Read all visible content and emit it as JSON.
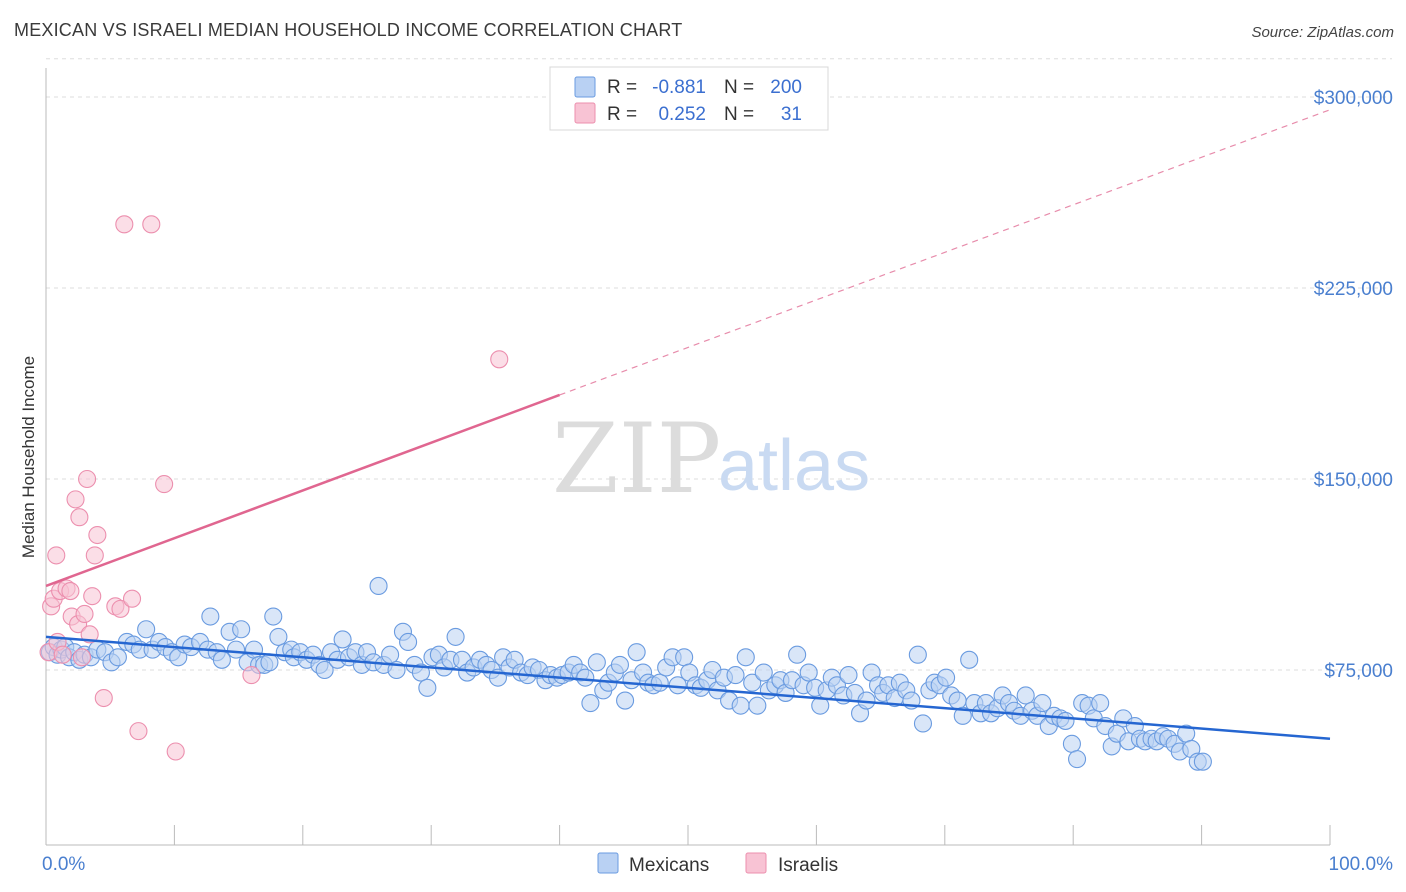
{
  "header": {
    "title": "MEXICAN VS ISRAELI MEDIAN HOUSEHOLD INCOME CORRELATION CHART",
    "source": "Source: ZipAtlas.com"
  },
  "colors": {
    "mexicans_fill": "#b9d1f3",
    "mexicans_stroke": "#6a9be0",
    "mexicans_line": "#2566d1",
    "israelis_fill": "#f8c3d4",
    "israelis_stroke": "#ec8fae",
    "israelis_line": "#e06690",
    "axis_text": "#4a7fcf",
    "grid": "#dddddd"
  },
  "watermark": {
    "part1": "ZIP",
    "part2": "atlas"
  },
  "legend": {
    "rows": [
      {
        "r_label": "R =",
        "r_value": "-0.881",
        "n_label": "N =",
        "n_value": "200"
      },
      {
        "r_label": "R =",
        "r_value": "0.252",
        "n_label": "N =",
        "n_value": "31"
      }
    ]
  },
  "chart_data": {
    "type": "scatter",
    "title": "MEXICAN VS ISRAELI MEDIAN HOUSEHOLD INCOME CORRELATION CHART",
    "xlabel": "",
    "ylabel": "Median Household Income",
    "xlim": [
      0,
      100
    ],
    "ylim": [
      0,
      315000
    ],
    "x_tick_labels": [
      "0.0%",
      "100.0%"
    ],
    "y_ticks": [
      75000,
      150000,
      225000,
      300000
    ],
    "y_tick_labels": [
      "$75,000",
      "$150,000",
      "$225,000",
      "$300,000"
    ],
    "grid": true,
    "legend_position": "top-center",
    "series": [
      {
        "name": "Mexicans",
        "r": -0.881,
        "n": 200,
        "trend": {
          "x": [
            0,
            100
          ],
          "y": [
            88000,
            48000
          ],
          "style": "solid"
        },
        "points": [
          [
            0.3,
            82000
          ],
          [
            0.6,
            84000
          ],
          [
            0.9,
            81000
          ],
          [
            1.2,
            83000
          ],
          [
            1.5,
            84000
          ],
          [
            1.8,
            80000
          ],
          [
            2.2,
            82000
          ],
          [
            2.6,
            79000
          ],
          [
            3.0,
            81000
          ],
          [
            3.5,
            80000
          ],
          [
            4.0,
            83000
          ],
          [
            4.6,
            82000
          ],
          [
            5.1,
            78000
          ],
          [
            5.6,
            80000
          ],
          [
            6.3,
            86000
          ],
          [
            6.8,
            85000
          ],
          [
            7.3,
            83000
          ],
          [
            7.8,
            91000
          ],
          [
            8.3,
            83000
          ],
          [
            8.8,
            86000
          ],
          [
            9.3,
            84000
          ],
          [
            9.8,
            82000
          ],
          [
            10.3,
            80000
          ],
          [
            10.8,
            85000
          ],
          [
            11.3,
            84000
          ],
          [
            12.0,
            86000
          ],
          [
            12.6,
            83000
          ],
          [
            12.8,
            96000
          ],
          [
            13.3,
            82000
          ],
          [
            13.7,
            79000
          ],
          [
            14.3,
            90000
          ],
          [
            14.8,
            83000
          ],
          [
            15.2,
            91000
          ],
          [
            15.7,
            78000
          ],
          [
            16.2,
            83000
          ],
          [
            16.6,
            77000
          ],
          [
            17.0,
            77000
          ],
          [
            17.4,
            78000
          ],
          [
            17.7,
            96000
          ],
          [
            18.1,
            88000
          ],
          [
            18.6,
            82000
          ],
          [
            19.1,
            83000
          ],
          [
            19.3,
            80000
          ],
          [
            19.8,
            82000
          ],
          [
            20.3,
            79000
          ],
          [
            20.8,
            81000
          ],
          [
            21.3,
            77000
          ],
          [
            21.7,
            75000
          ],
          [
            22.2,
            82000
          ],
          [
            22.7,
            79000
          ],
          [
            23.1,
            87000
          ],
          [
            23.6,
            80000
          ],
          [
            24.1,
            82000
          ],
          [
            24.6,
            77000
          ],
          [
            25.0,
            82000
          ],
          [
            25.5,
            78000
          ],
          [
            25.9,
            108000
          ],
          [
            26.3,
            77000
          ],
          [
            26.8,
            81000
          ],
          [
            27.3,
            75000
          ],
          [
            27.8,
            90000
          ],
          [
            28.2,
            86000
          ],
          [
            28.7,
            77000
          ],
          [
            29.2,
            74000
          ],
          [
            29.7,
            68000
          ],
          [
            30.1,
            80000
          ],
          [
            30.6,
            81000
          ],
          [
            31.0,
            76000
          ],
          [
            31.5,
            79000
          ],
          [
            31.9,
            88000
          ],
          [
            32.4,
            79000
          ],
          [
            32.8,
            74000
          ],
          [
            33.3,
            76000
          ],
          [
            33.8,
            79000
          ],
          [
            34.3,
            77000
          ],
          [
            34.7,
            75000
          ],
          [
            35.2,
            72000
          ],
          [
            35.6,
            80000
          ],
          [
            36.1,
            76000
          ],
          [
            36.5,
            79000
          ],
          [
            37.0,
            74000
          ],
          [
            37.5,
            73000
          ],
          [
            37.9,
            76000
          ],
          [
            38.4,
            75000
          ],
          [
            38.9,
            71000
          ],
          [
            39.3,
            73000
          ],
          [
            39.8,
            72000
          ],
          [
            40.2,
            73000
          ],
          [
            40.7,
            74000
          ],
          [
            41.1,
            77000
          ],
          [
            41.6,
            74000
          ],
          [
            42.0,
            72000
          ],
          [
            42.4,
            62000
          ],
          [
            42.9,
            78000
          ],
          [
            43.4,
            67000
          ],
          [
            43.8,
            70000
          ],
          [
            44.3,
            74000
          ],
          [
            44.7,
            77000
          ],
          [
            45.1,
            63000
          ],
          [
            45.6,
            71000
          ],
          [
            46.0,
            82000
          ],
          [
            46.5,
            74000
          ],
          [
            46.9,
            70000
          ],
          [
            47.3,
            69000
          ],
          [
            47.8,
            70000
          ],
          [
            48.3,
            76000
          ],
          [
            48.8,
            80000
          ],
          [
            49.2,
            69000
          ],
          [
            49.7,
            80000
          ],
          [
            50.1,
            74000
          ],
          [
            50.6,
            69000
          ],
          [
            51.0,
            68000
          ],
          [
            51.5,
            71000
          ],
          [
            51.9,
            75000
          ],
          [
            52.3,
            67000
          ],
          [
            52.8,
            72000
          ],
          [
            53.2,
            63000
          ],
          [
            53.7,
            73000
          ],
          [
            54.1,
            61000
          ],
          [
            54.5,
            80000
          ],
          [
            55.0,
            70000
          ],
          [
            55.4,
            61000
          ],
          [
            55.9,
            74000
          ],
          [
            56.3,
            67000
          ],
          [
            56.8,
            69000
          ],
          [
            57.2,
            71000
          ],
          [
            57.6,
            66000
          ],
          [
            58.1,
            71000
          ],
          [
            58.5,
            81000
          ],
          [
            59.0,
            69000
          ],
          [
            59.4,
            74000
          ],
          [
            59.9,
            68000
          ],
          [
            60.3,
            61000
          ],
          [
            60.8,
            67000
          ],
          [
            61.2,
            72000
          ],
          [
            61.6,
            69000
          ],
          [
            62.1,
            65000
          ],
          [
            62.5,
            73000
          ],
          [
            63.0,
            66000
          ],
          [
            63.4,
            58000
          ],
          [
            63.9,
            63000
          ],
          [
            64.3,
            74000
          ],
          [
            64.8,
            69000
          ],
          [
            65.2,
            66000
          ],
          [
            65.6,
            69000
          ],
          [
            66.1,
            64000
          ],
          [
            66.5,
            70000
          ],
          [
            67.0,
            67000
          ],
          [
            67.4,
            63000
          ],
          [
            67.9,
            81000
          ],
          [
            68.3,
            54000
          ],
          [
            68.8,
            67000
          ],
          [
            69.2,
            70000
          ],
          [
            69.6,
            69000
          ],
          [
            70.1,
            72000
          ],
          [
            70.5,
            65000
          ],
          [
            71.0,
            63000
          ],
          [
            71.4,
            57000
          ],
          [
            71.9,
            79000
          ],
          [
            72.3,
            62000
          ],
          [
            72.8,
            58000
          ],
          [
            73.2,
            62000
          ],
          [
            73.6,
            58000
          ],
          [
            74.1,
            60000
          ],
          [
            74.5,
            65000
          ],
          [
            75.0,
            62000
          ],
          [
            75.4,
            59000
          ],
          [
            75.9,
            57000
          ],
          [
            76.3,
            65000
          ],
          [
            76.8,
            59000
          ],
          [
            77.2,
            57000
          ],
          [
            77.6,
            62000
          ],
          [
            78.1,
            53000
          ],
          [
            78.5,
            57000
          ],
          [
            79.0,
            56000
          ],
          [
            79.4,
            55000
          ],
          [
            79.9,
            46000
          ],
          [
            80.3,
            40000
          ],
          [
            80.7,
            62000
          ],
          [
            81.2,
            61000
          ],
          [
            81.6,
            56000
          ],
          [
            82.1,
            62000
          ],
          [
            82.5,
            53000
          ],
          [
            83.0,
            45000
          ],
          [
            83.4,
            50000
          ],
          [
            83.9,
            56000
          ],
          [
            84.3,
            47000
          ],
          [
            84.8,
            53000
          ],
          [
            85.2,
            48000
          ],
          [
            85.6,
            47000
          ],
          [
            86.1,
            48000
          ],
          [
            86.5,
            47000
          ],
          [
            87.0,
            49000
          ],
          [
            87.4,
            48000
          ],
          [
            87.9,
            46000
          ],
          [
            88.3,
            43000
          ],
          [
            88.8,
            50000
          ],
          [
            89.2,
            44000
          ],
          [
            89.7,
            39000
          ],
          [
            90.1,
            39000
          ]
        ]
      },
      {
        "name": "Israelis",
        "r": 0.252,
        "n": 31,
        "trend": {
          "x": [
            0,
            40,
            100
          ],
          "y": [
            108000,
            183000,
            295000
          ],
          "style": "solid-then-dashed"
        },
        "points": [
          [
            0.2,
            82000
          ],
          [
            0.4,
            100000
          ],
          [
            0.6,
            103000
          ],
          [
            0.8,
            120000
          ],
          [
            0.9,
            86000
          ],
          [
            1.1,
            106000
          ],
          [
            1.3,
            81000
          ],
          [
            1.6,
            107000
          ],
          [
            1.9,
            106000
          ],
          [
            2.0,
            96000
          ],
          [
            2.3,
            142000
          ],
          [
            2.5,
            93000
          ],
          [
            2.6,
            135000
          ],
          [
            2.8,
            80000
          ],
          [
            3.0,
            97000
          ],
          [
            3.2,
            150000
          ],
          [
            3.4,
            89000
          ],
          [
            3.6,
            104000
          ],
          [
            3.8,
            120000
          ],
          [
            4.0,
            128000
          ],
          [
            4.5,
            64000
          ],
          [
            5.4,
            100000
          ],
          [
            5.8,
            99000
          ],
          [
            6.1,
            250000
          ],
          [
            6.7,
            103000
          ],
          [
            7.2,
            51000
          ],
          [
            8.2,
            250000
          ],
          [
            9.2,
            148000
          ],
          [
            10.1,
            43000
          ],
          [
            16.0,
            73000
          ],
          [
            35.3,
            197000
          ]
        ]
      }
    ]
  }
}
